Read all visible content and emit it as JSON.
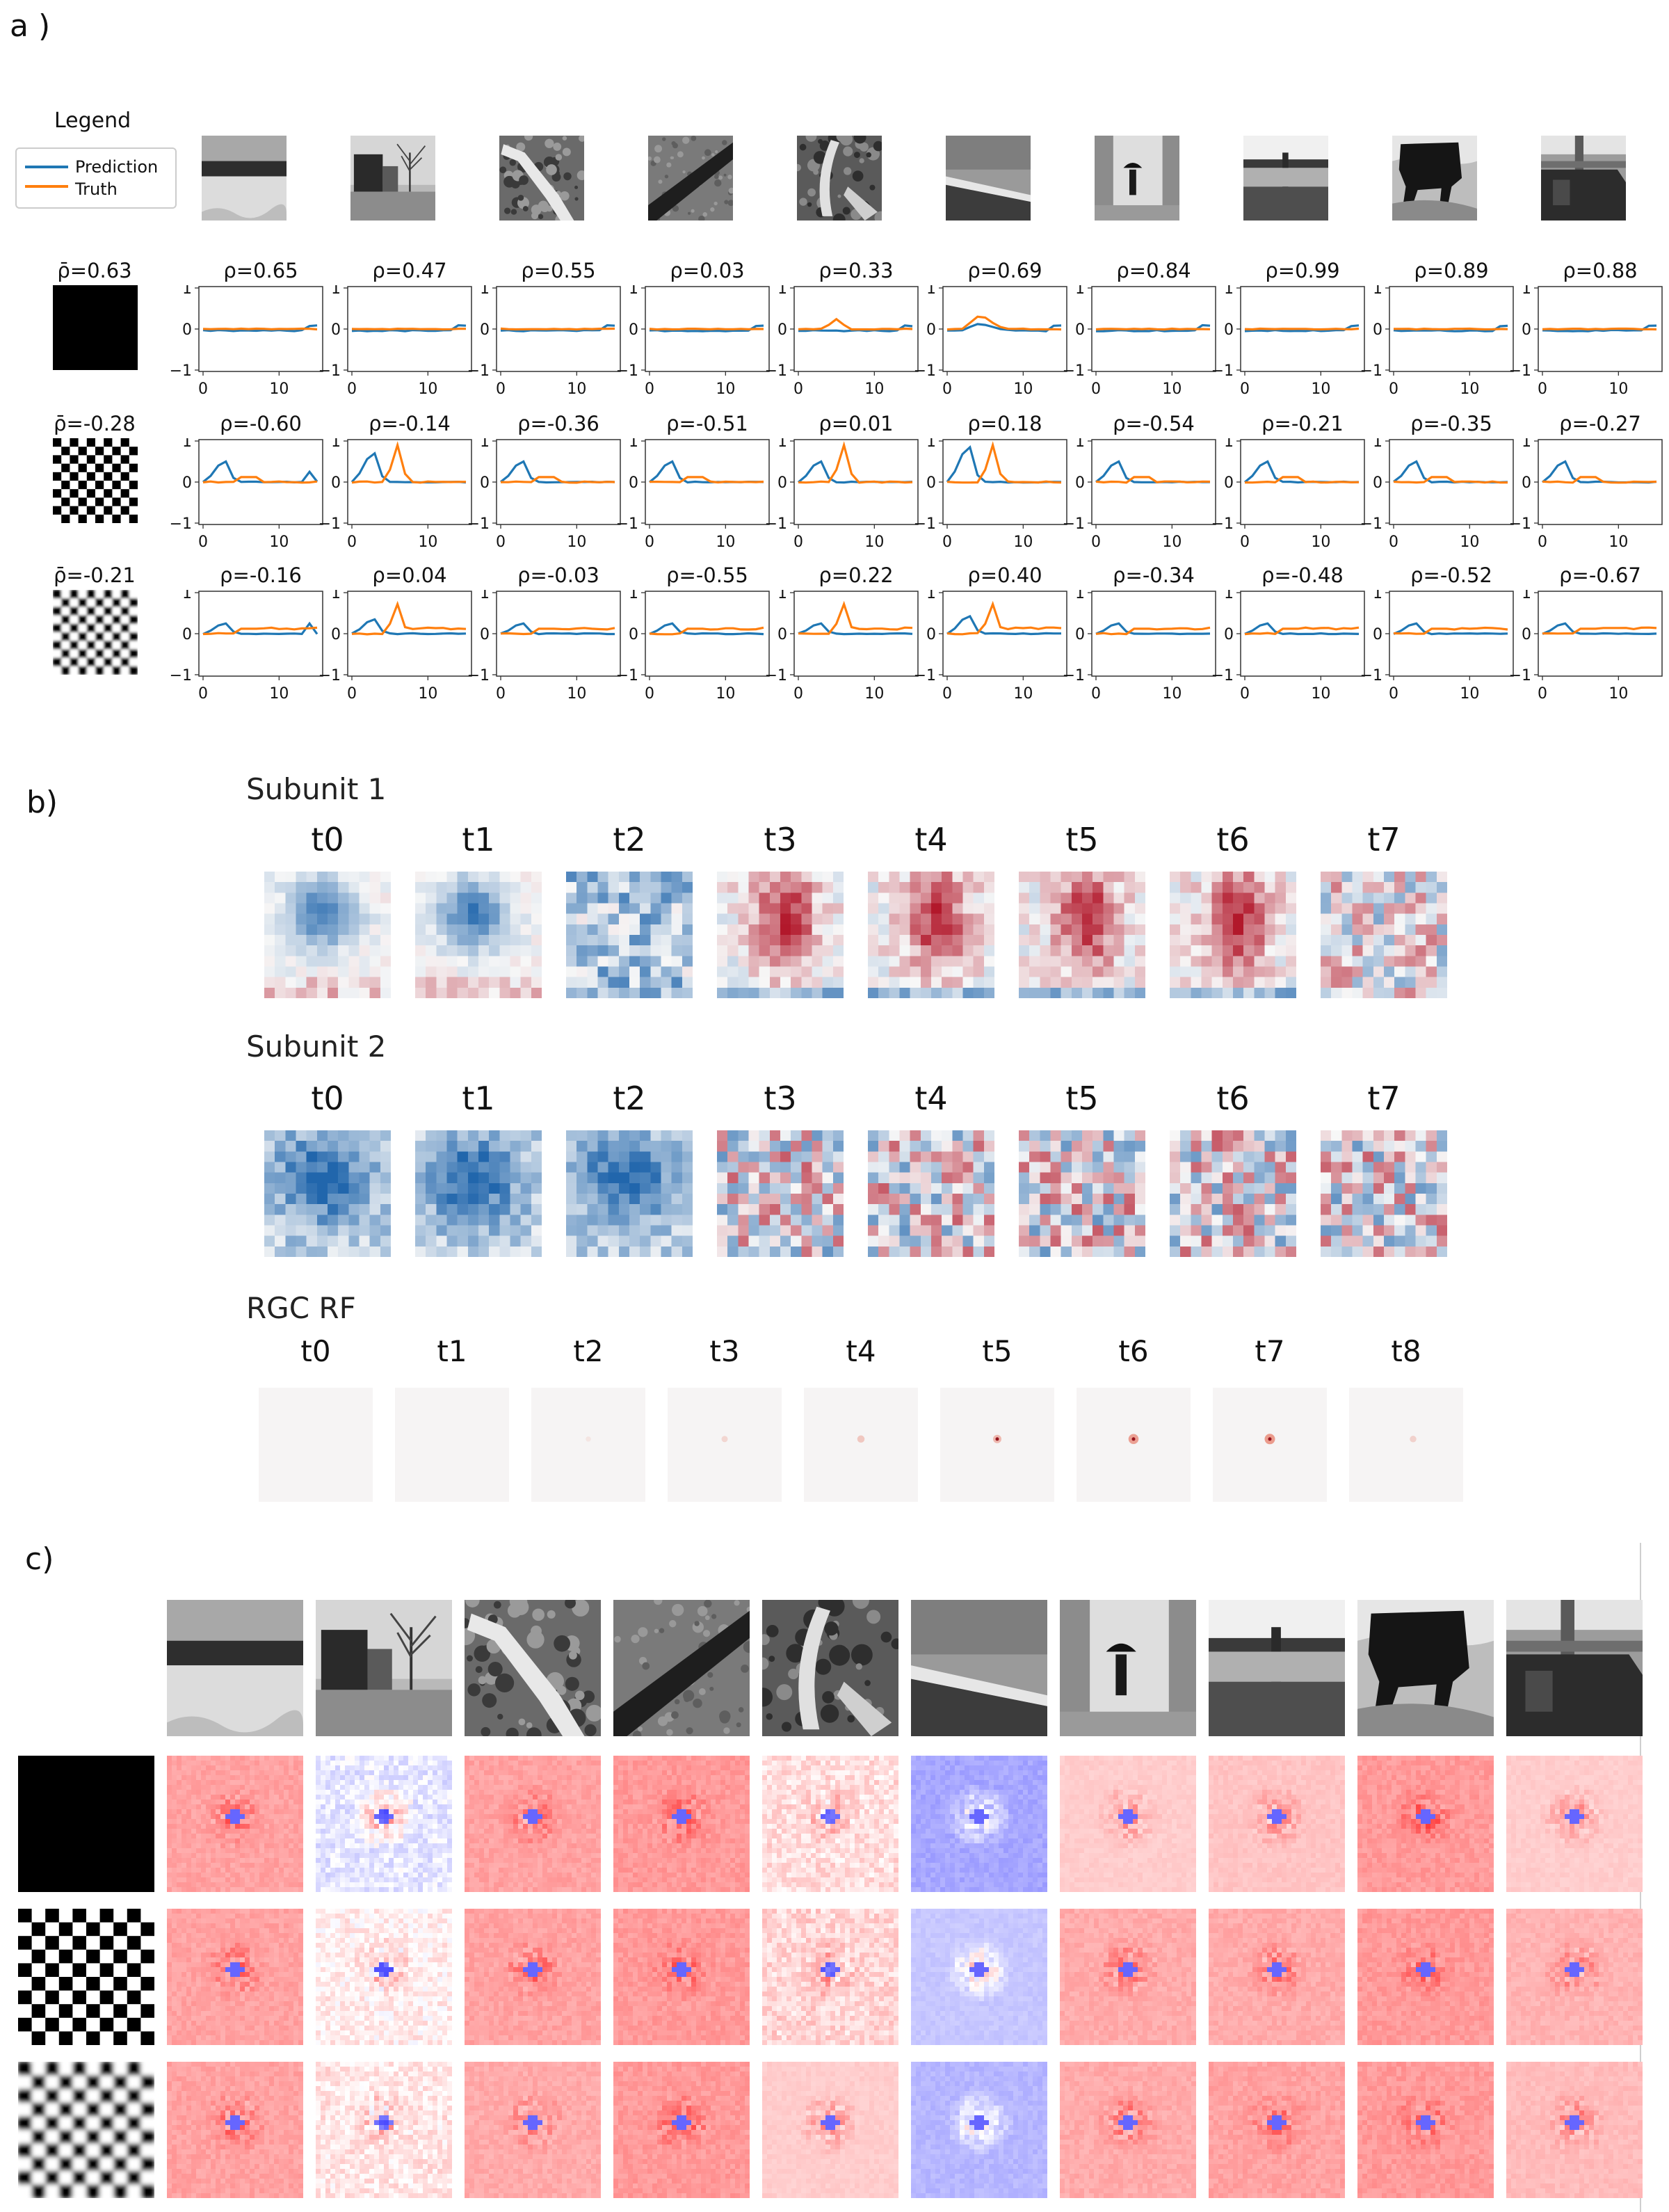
{
  "panel_a": {
    "label": "a )",
    "legend": {
      "title": "Legend",
      "items": [
        {
          "label": "Prediction",
          "color": "#1f77b4"
        },
        {
          "label": "Truth",
          "color": "#ff7f0e"
        }
      ]
    },
    "stimulus_rows": [
      {
        "type": "black",
        "mean_rho": "ρ̄=0.63",
        "rhos": [
          "ρ=0.65",
          "ρ=0.47",
          "ρ=0.55",
          "ρ=0.03",
          "ρ=0.33",
          "ρ=0.69",
          "ρ=0.84",
          "ρ=0.99",
          "ρ=0.89",
          "ρ=0.88"
        ]
      },
      {
        "type": "checker-sharp",
        "mean_rho": "ρ̄=-0.28",
        "rhos": [
          "ρ=-0.60",
          "ρ=-0.14",
          "ρ=-0.36",
          "ρ=-0.51",
          "ρ=0.01",
          "ρ=0.18",
          "ρ=-0.54",
          "ρ=-0.21",
          "ρ=-0.35",
          "ρ=-0.27"
        ]
      },
      {
        "type": "checker-blurred",
        "mean_rho": "ρ̄=-0.21",
        "rhos": [
          "ρ=-0.16",
          "ρ=0.04",
          "ρ=-0.03",
          "ρ=-0.55",
          "ρ=0.22",
          "ρ=0.40",
          "ρ=-0.34",
          "ρ=-0.48",
          "ρ=-0.52",
          "ρ=-0.67"
        ]
      }
    ],
    "axis": {
      "yticks": [
        "1",
        "0",
        "−1"
      ],
      "xticks": [
        "0",
        "10"
      ]
    }
  },
  "panel_b": {
    "label": "b)",
    "subunit1": {
      "title": "Subunit 1",
      "times": [
        "t0",
        "t1",
        "t2",
        "t3",
        "t4",
        "t5",
        "t6",
        "t7"
      ]
    },
    "subunit2": {
      "title": "Subunit 2",
      "times": [
        "t0",
        "t1",
        "t2",
        "t3",
        "t4",
        "t5",
        "t6",
        "t7"
      ]
    },
    "rgc": {
      "title": "RGC RF",
      "times": [
        "t0",
        "t1",
        "t2",
        "t3",
        "t4",
        "t5",
        "t6",
        "t7",
        "t8"
      ]
    }
  },
  "panel_c": {
    "label": "c)",
    "row_stimuli": [
      "black",
      "checker-sharp",
      "checker-blurred"
    ]
  },
  "chart_data": [
    {
      "type": "line",
      "title": "",
      "xlabel": "",
      "ylabel": "",
      "ylim": [
        -1,
        1
      ],
      "xlim": [
        0,
        15
      ],
      "series": [
        {
          "name": "Prediction"
        },
        {
          "name": "Truth"
        }
      ],
      "note_grid": "3 stimulus rows x 10 scenes",
      "correlations": {
        "black": [
          0.65,
          0.47,
          0.55,
          0.03,
          0.33,
          0.69,
          0.84,
          0.99,
          0.89,
          0.88
        ],
        "checker_sharp": [
          -0.6,
          -0.14,
          -0.36,
          -0.51,
          0.01,
          0.18,
          -0.54,
          -0.21,
          -0.35,
          -0.27
        ],
        "checker_blurred": [
          -0.16,
          0.04,
          -0.03,
          -0.55,
          0.22,
          0.4,
          -0.34,
          -0.48,
          -0.52,
          -0.67
        ]
      },
      "mean_correlations": {
        "black": 0.63,
        "checker_sharp": -0.28,
        "checker_blurred": -0.21
      }
    }
  ]
}
